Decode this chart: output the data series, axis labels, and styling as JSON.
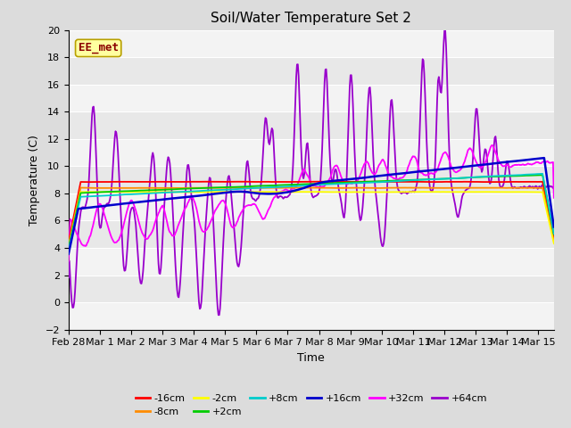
{
  "title": "Soil/Water Temperature Set 2",
  "xlabel": "Time",
  "ylabel": "Temperature (C)",
  "ylim": [
    -2,
    20
  ],
  "yticks": [
    -2,
    0,
    2,
    4,
    6,
    8,
    10,
    12,
    14,
    16,
    18,
    20
  ],
  "xtick_labels": [
    "Feb 28",
    "Mar 1",
    "Mar 2",
    "Mar 3",
    "Mar 4",
    "Mar 5",
    "Mar 6",
    "Mar 7",
    "Mar 8",
    "Mar 9",
    "Mar 10",
    "Mar 11",
    "Mar 12",
    "Mar 13",
    "Mar 14",
    "Mar 15"
  ],
  "annotation_text": "EE_met",
  "annotation_color": "#8B0000",
  "annotation_bg": "#FFFFA0",
  "annotation_border": "#B8A000",
  "series_colors": {
    "-16cm": "#FF0000",
    "-8cm": "#FF8C00",
    "-2cm": "#FFFF00",
    "+2cm": "#00CC00",
    "+8cm": "#00CCCC",
    "+16cm": "#0000CC",
    "+32cm": "#FF00FF",
    "+64cm": "#9900CC"
  },
  "bg_color": "#DCDCDC",
  "plot_bg": "#E8E8E8",
  "grid_color": "#FFFFFF"
}
